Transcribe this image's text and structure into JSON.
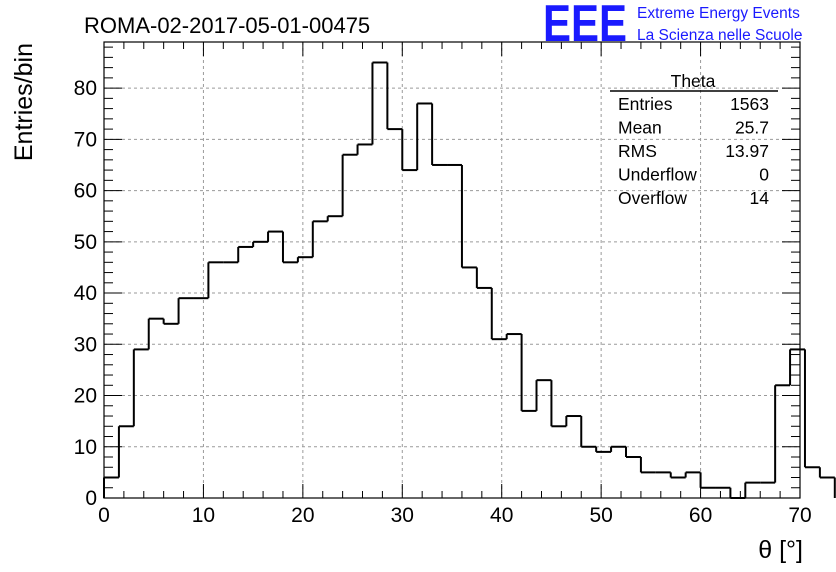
{
  "page": {
    "title": "ROMA-02-2017-05-01-00475"
  },
  "logo": {
    "mark": "EEE",
    "line1": "Extreme Energy Events",
    "line2": "La Scienza nelle Scuole",
    "color": "#1a1aff"
  },
  "stats": {
    "name": "Theta",
    "rows": [
      {
        "label": "Entries",
        "value": "1563"
      },
      {
        "label": "Mean",
        "value": "25.7"
      },
      {
        "label": "RMS",
        "value": "13.97"
      },
      {
        "label": "Underflow",
        "value": "0"
      },
      {
        "label": "Overflow",
        "value": "14"
      }
    ]
  },
  "chart_data": {
    "type": "bar",
    "style": "step-histogram",
    "xlabel": "θ [°]",
    "ylabel": "Entries/bin",
    "xlim": [
      0,
      70
    ],
    "ylim": [
      0,
      89
    ],
    "grid": true,
    "xticks": [
      0,
      10,
      20,
      30,
      40,
      50,
      60,
      70
    ],
    "yticks": [
      0,
      10,
      20,
      30,
      40,
      50,
      60,
      70,
      80
    ],
    "bin_width": 1.5,
    "bin_edges_start": 0,
    "values": [
      4,
      14,
      29,
      35,
      34,
      39,
      39,
      46,
      46,
      49,
      50,
      52,
      46,
      47,
      54,
      55,
      67,
      69,
      85,
      72,
      64,
      77,
      65,
      65,
      45,
      41,
      31,
      32,
      17,
      23,
      14,
      16,
      10,
      9,
      10,
      8,
      5,
      5,
      4,
      5,
      2,
      2,
      0,
      3,
      3,
      22,
      29,
      6,
      4
    ],
    "line_color": "#000000"
  }
}
